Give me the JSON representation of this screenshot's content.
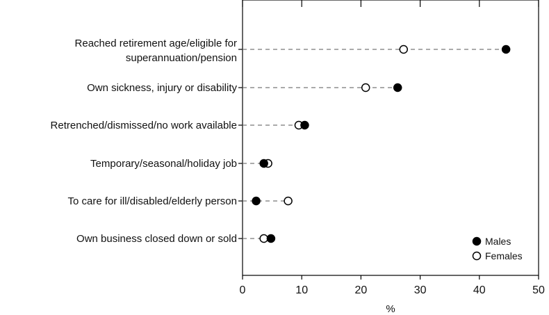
{
  "chart_data": {
    "type": "scatter",
    "title": "",
    "xlabel": "%",
    "ylabel": "",
    "xlim": [
      0,
      50
    ],
    "xticks": [
      "0",
      "10",
      "20",
      "30",
      "40",
      "50"
    ],
    "grid": false,
    "legend_position": "bottom-right",
    "categories": [
      [
        "Reached retirement age/eligible for",
        "superannuation/pension"
      ],
      [
        "Own sickness, injury or disability"
      ],
      [
        "Retrenched/dismissed/no work available"
      ],
      [
        "Temporary/seasonal/holiday job"
      ],
      [
        "To care for ill/disabled/elderly person"
      ],
      [
        "Own business closed down or sold"
      ]
    ],
    "series": [
      {
        "name": "Males",
        "marker": "filled",
        "color": "#000000",
        "values": [
          44.5,
          26.2,
          10.5,
          3.6,
          2.3,
          4.8
        ]
      },
      {
        "name": "Females",
        "marker": "hollow",
        "color": "#000000",
        "values": [
          27.2,
          20.8,
          9.5,
          4.3,
          7.7,
          3.6
        ]
      }
    ]
  }
}
